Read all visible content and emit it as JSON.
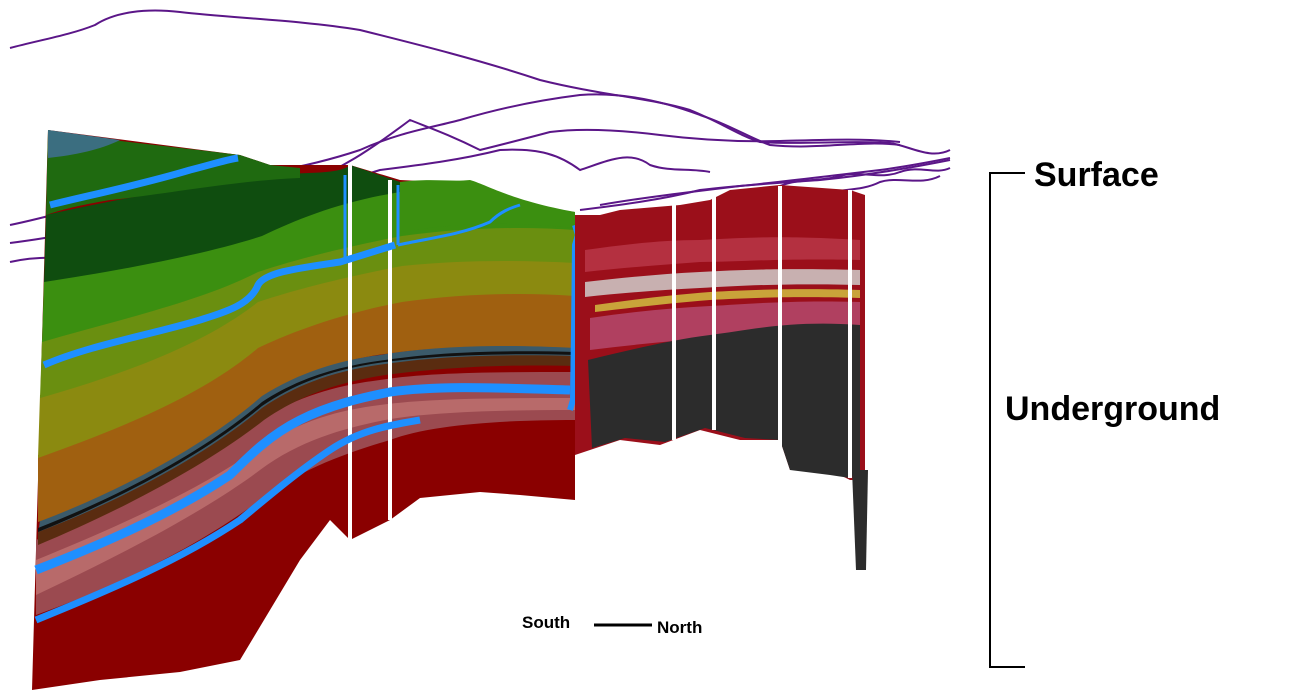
{
  "labels": {
    "surface": "Surface",
    "underground": "Underground",
    "south": "South",
    "north": "North"
  },
  "colors": {
    "surface_trace": "#5b1688",
    "aquifer": "#1e8fff",
    "west_strata": [
      "#3b6e80",
      "#0f4d0f",
      "#1f6a10",
      "#3b8f10",
      "#6a8f10",
      "#8b8a10",
      "#a07010",
      "#7a3c10",
      "#9b3030",
      "#8a0000"
    ],
    "east_strata": [
      "#9b0f1a",
      "#b43040",
      "#c8b0b0",
      "#c9a33a",
      "#b04060",
      "#8c1020",
      "#2c2c2c"
    ]
  }
}
